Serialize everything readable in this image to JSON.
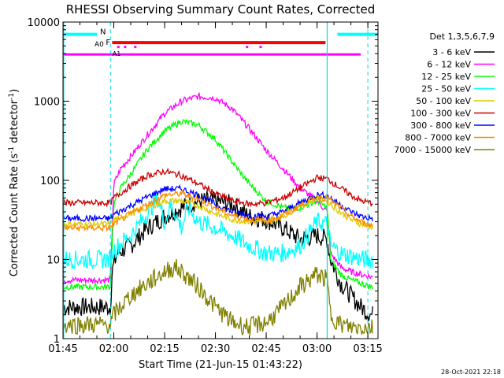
{
  "chart_data": {
    "type": "line",
    "title": "RHESSI Observing Summary Count Rates, Corrected",
    "xlabel": "Start Time (21-Jun-15 01:43:22)",
    "ylabel": "Corrected Count Rate (s",
    "ylabel_sup": "-1",
    "ylabel_mid": " detector",
    "ylabel_end": ")",
    "y_scale": "log",
    "ylim": [
      1,
      10000
    ],
    "xlim_minutes": [
      105,
      198
    ],
    "y_ticks": [
      {
        "value": 1,
        "label": "1"
      },
      {
        "value": 10,
        "label": "10"
      },
      {
        "value": 100,
        "label": "100"
      },
      {
        "value": 1000,
        "label": "1000"
      },
      {
        "value": 10000,
        "label": "10000"
      }
    ],
    "x_ticks": [
      {
        "value": 105,
        "label": "01:45"
      },
      {
        "value": 120,
        "label": "02:00"
      },
      {
        "value": 135,
        "label": "02:15"
      },
      {
        "value": 150,
        "label": "02:30"
      },
      {
        "value": 165,
        "label": "02:45"
      },
      {
        "value": 180,
        "label": "03:00"
      },
      {
        "value": 195,
        "label": "03:15"
      }
    ],
    "legend_title": "Det 1,3,5,6,7,9",
    "legend_position": "right",
    "series": [
      {
        "name": "3 - 6 keV",
        "color": "#000000",
        "x": [
          105,
          119,
          119.5,
          121,
          125,
          130,
          135,
          140,
          145,
          150,
          155,
          160,
          165,
          170,
          175,
          180,
          183,
          184,
          187,
          190,
          193,
          196
        ],
        "y": [
          2.5,
          2.5,
          7,
          12,
          15,
          25,
          35,
          45,
          55,
          55,
          50,
          35,
          32,
          25,
          18,
          20,
          18,
          10,
          5,
          3.5,
          2.5,
          2
        ]
      },
      {
        "name": "6 - 12 keV",
        "color": "#ff00ff",
        "x": [
          105,
          119,
          120,
          122,
          125,
          130,
          135,
          140,
          145,
          150,
          155,
          160,
          165,
          170,
          175,
          180,
          183,
          184,
          187,
          190,
          193,
          196
        ],
        "y": [
          5.5,
          5.5,
          90,
          140,
          200,
          380,
          700,
          1000,
          1150,
          1100,
          800,
          450,
          240,
          140,
          80,
          55,
          40,
          12,
          8,
          7,
          6.5,
          6
        ]
      },
      {
        "name": "12 - 25 keV",
        "color": "#00ff00",
        "x": [
          105,
          119,
          120,
          122,
          125,
          130,
          135,
          140,
          145,
          150,
          155,
          160,
          165,
          170,
          175,
          180,
          183,
          184,
          187,
          190,
          193,
          196
        ],
        "y": [
          4.5,
          4.5,
          50,
          80,
          120,
          250,
          420,
          560,
          500,
          330,
          170,
          90,
          55,
          45,
          45,
          55,
          45,
          10,
          6.5,
          5.5,
          5,
          4.5
        ]
      },
      {
        "name": "25 - 50 keV",
        "color": "#00ffff",
        "x": [
          105,
          119,
          120,
          122,
          125,
          128,
          131,
          133,
          135,
          137,
          140,
          142,
          145,
          150,
          155,
          160,
          165,
          170,
          175,
          180,
          183,
          184,
          187,
          190,
          193,
          196
        ],
        "y": [
          10,
          10,
          13,
          16,
          20,
          30,
          45,
          60,
          30,
          50,
          25,
          45,
          30,
          25,
          20,
          15,
          12,
          12,
          15,
          30,
          28,
          15,
          12,
          11,
          10,
          10
        ]
      },
      {
        "name": "50 - 100 keV",
        "color": "#e0c800",
        "x": [
          105,
          119,
          120,
          125,
          130,
          135,
          140,
          145,
          150,
          155,
          160,
          165,
          170,
          175,
          180,
          183,
          186,
          190,
          193,
          196
        ],
        "y": [
          28,
          28,
          32,
          38,
          45,
          55,
          55,
          48,
          38,
          32,
          30,
          30,
          35,
          48,
          60,
          55,
          42,
          32,
          28,
          26
        ]
      },
      {
        "name": "100 - 300 keV",
        "color": "#cc0000",
        "x": [
          105,
          119,
          120,
          125,
          130,
          135,
          140,
          145,
          150,
          155,
          160,
          165,
          170,
          175,
          180,
          183,
          186,
          190,
          193,
          196
        ],
        "y": [
          52,
          52,
          60,
          85,
          115,
          130,
          115,
          90,
          68,
          55,
          50,
          52,
          60,
          80,
          108,
          105,
          85,
          65,
          55,
          52
        ]
      },
      {
        "name": "300 - 800 keV",
        "color": "#0000ff",
        "x": [
          105,
          119,
          120,
          125,
          130,
          135,
          140,
          145,
          150,
          155,
          160,
          165,
          170,
          175,
          180,
          183,
          186,
          190,
          193,
          196
        ],
        "y": [
          33,
          33,
          37,
          48,
          62,
          78,
          78,
          65,
          50,
          40,
          36,
          35,
          40,
          52,
          66,
          64,
          52,
          40,
          35,
          33
        ]
      },
      {
        "name": "800 - 7000 keV",
        "color": "#ff8c00",
        "x": [
          105,
          119,
          120,
          125,
          130,
          135,
          140,
          145,
          150,
          155,
          160,
          165,
          170,
          175,
          180,
          183,
          186,
          190,
          193,
          196
        ],
        "y": [
          25,
          25,
          28,
          38,
          50,
          65,
          68,
          58,
          45,
          36,
          32,
          31,
          36,
          48,
          62,
          60,
          48,
          35,
          30,
          27
        ]
      },
      {
        "name": "7000 - 15000 keV",
        "color": "#808000",
        "x": [
          105,
          119,
          120,
          125,
          130,
          135,
          138,
          140,
          145,
          150,
          155,
          160,
          165,
          170,
          175,
          180,
          183,
          184,
          187,
          190,
          193,
          196
        ],
        "y": [
          1.5,
          1.5,
          2,
          3.5,
          5,
          7,
          8,
          7,
          4.5,
          2.5,
          1.6,
          1.4,
          1.6,
          2.5,
          4.5,
          6.5,
          5.5,
          2,
          1.5,
          1.4,
          1.4,
          1.4
        ]
      }
    ],
    "annotations": {
      "night_label": "N",
      "flare_label": "F",
      "attenuator_label": "A0",
      "night_intervals": [
        [
          105,
          115
        ],
        [
          186,
          198
        ]
      ],
      "flare_interval": [
        119.5,
        182.5
      ],
      "attenuator_level": "A0",
      "vertical_markers_dashed": [
        119,
        195
      ],
      "vertical_markers_solid": [
        183
      ],
      "decimation_label": "A1"
    }
  },
  "footer_timestamp": "28-Oct-2021 22:18"
}
